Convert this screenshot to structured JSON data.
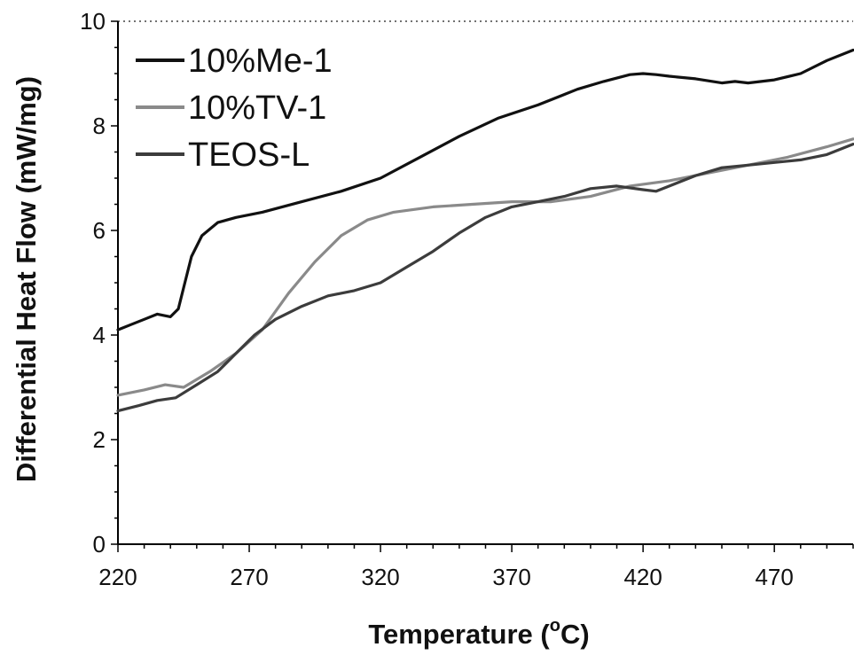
{
  "chart_data": {
    "type": "line",
    "xlabel": "Temperature (",
    "xlabel_sup": "o",
    "xlabel_unit": "C)",
    "ylabel": "Differential Heat Flow (mW/mg)",
    "xlim": [
      220,
      500
    ],
    "ylim": [
      0,
      10
    ],
    "xticks": [
      220,
      270,
      320,
      370,
      420,
      470
    ],
    "yticks": [
      0,
      2,
      4,
      6,
      8,
      10
    ],
    "grid": false,
    "legend_position": "top-left",
    "series": [
      {
        "name": "10%Me-1",
        "color": "#111111",
        "x": [
          220,
          225,
          230,
          235,
          240,
          243,
          245,
          248,
          252,
          258,
          265,
          275,
          290,
          305,
          320,
          335,
          350,
          365,
          380,
          395,
          405,
          415,
          420,
          425,
          430,
          440,
          450,
          455,
          460,
          470,
          480,
          490,
          500
        ],
        "y": [
          4.1,
          4.2,
          4.3,
          4.4,
          4.35,
          4.5,
          4.9,
          5.5,
          5.9,
          6.15,
          6.25,
          6.35,
          6.55,
          6.75,
          7.0,
          7.4,
          7.8,
          8.15,
          8.4,
          8.7,
          8.85,
          8.98,
          9.0,
          8.98,
          8.95,
          8.9,
          8.82,
          8.85,
          8.82,
          8.88,
          9.0,
          9.25,
          9.45
        ]
      },
      {
        "name": "10%TV-1",
        "color": "#8a8a8a",
        "x": [
          220,
          230,
          238,
          245,
          255,
          265,
          275,
          285,
          295,
          305,
          315,
          325,
          340,
          355,
          370,
          385,
          400,
          415,
          430,
          445,
          460,
          475,
          490,
          500
        ],
        "y": [
          2.85,
          2.95,
          3.05,
          3.0,
          3.3,
          3.65,
          4.1,
          4.8,
          5.4,
          5.9,
          6.2,
          6.35,
          6.45,
          6.5,
          6.55,
          6.55,
          6.65,
          6.85,
          6.95,
          7.1,
          7.25,
          7.4,
          7.6,
          7.75
        ]
      },
      {
        "name": "TEOS-L",
        "color": "#3c3c3c",
        "x": [
          220,
          228,
          235,
          242,
          250,
          258,
          265,
          272,
          280,
          290,
          300,
          310,
          320,
          330,
          340,
          350,
          360,
          370,
          380,
          390,
          400,
          410,
          420,
          425,
          430,
          440,
          450,
          460,
          470,
          480,
          490,
          500
        ],
        "y": [
          2.55,
          2.65,
          2.75,
          2.8,
          3.05,
          3.3,
          3.65,
          4.0,
          4.3,
          4.55,
          4.75,
          4.85,
          5.0,
          5.3,
          5.6,
          5.95,
          6.25,
          6.45,
          6.55,
          6.65,
          6.8,
          6.85,
          6.78,
          6.75,
          6.85,
          7.05,
          7.2,
          7.25,
          7.3,
          7.35,
          7.45,
          7.65
        ]
      }
    ]
  }
}
